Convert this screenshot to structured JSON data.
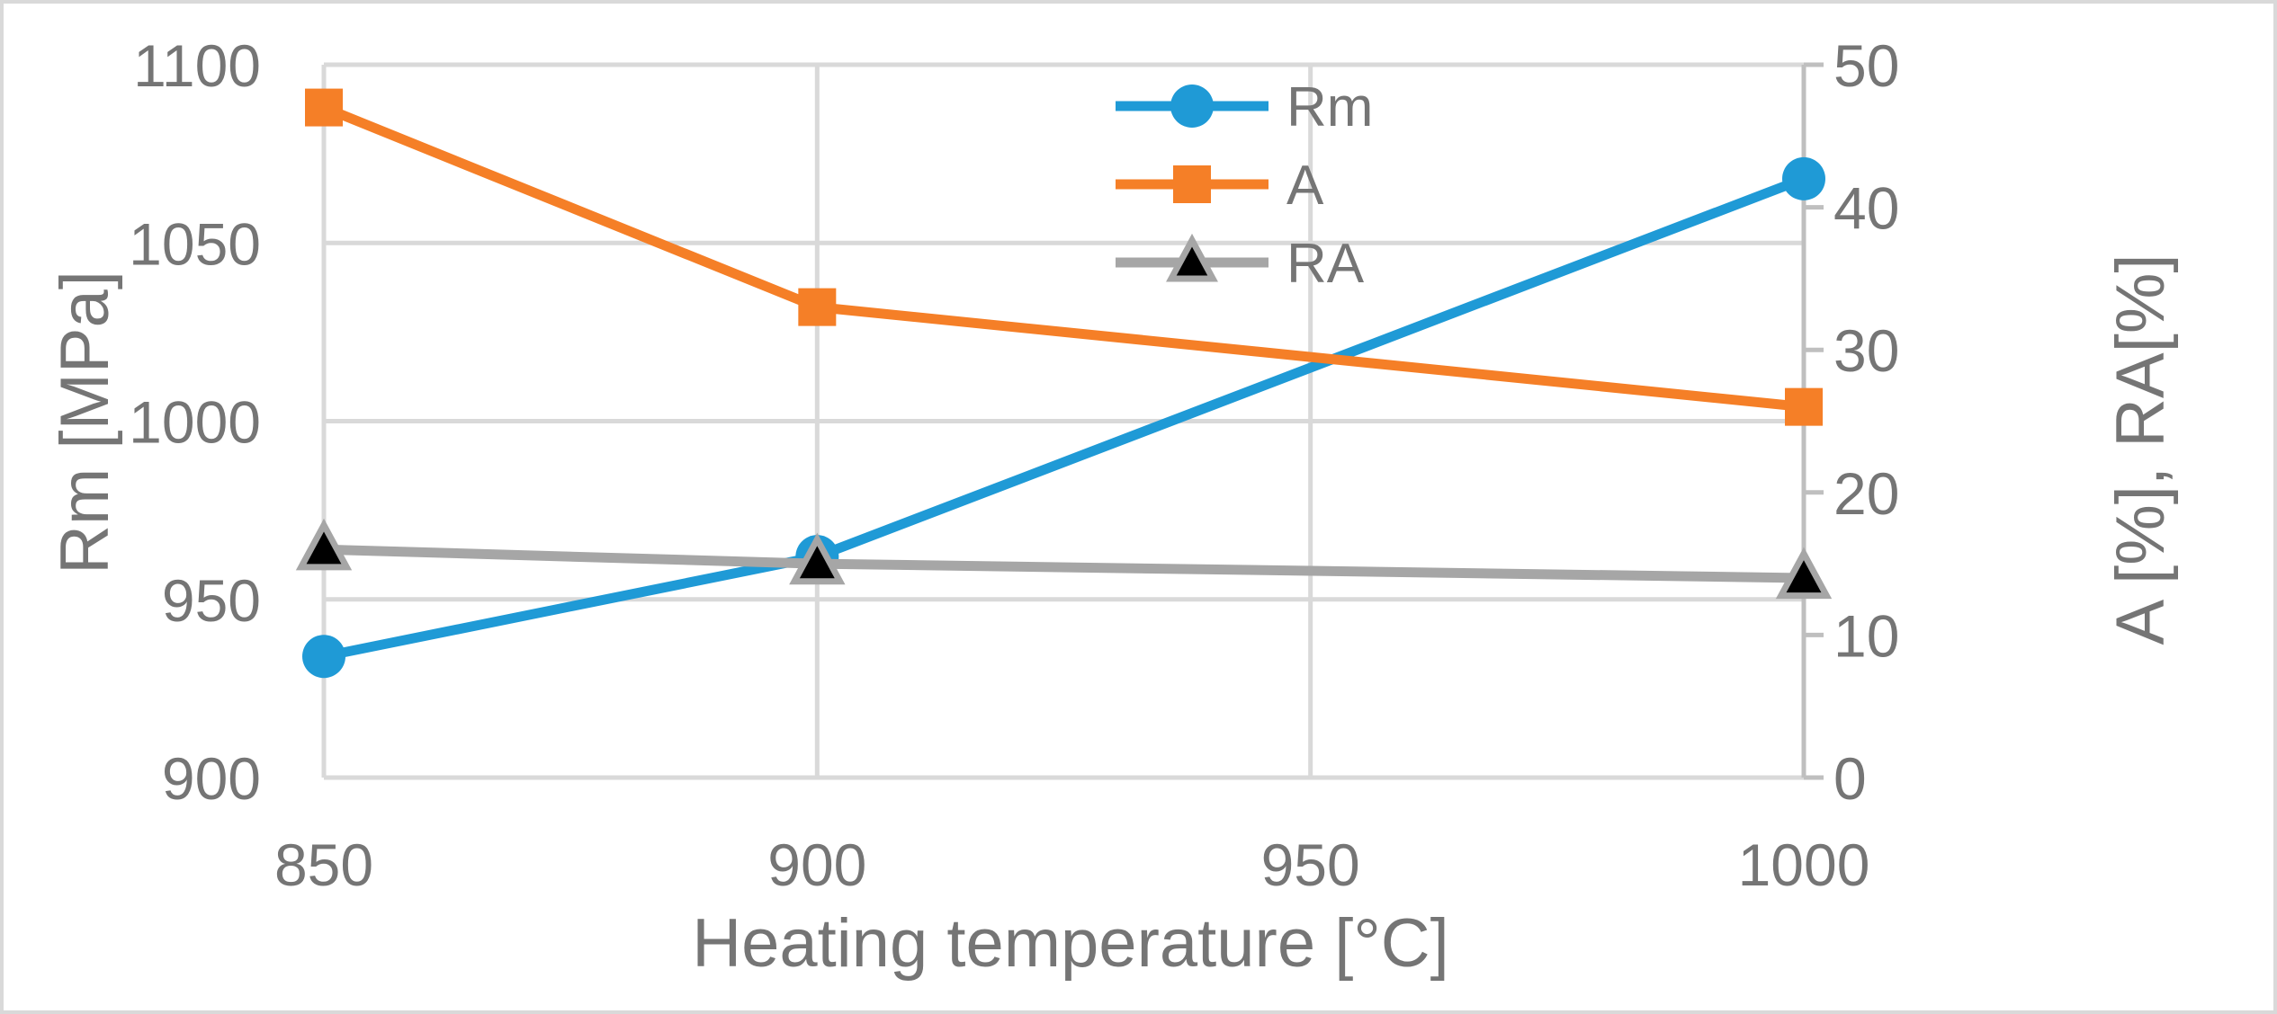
{
  "chart_data": {
    "type": "line",
    "xlabel": "Heating temperature [°C]",
    "ylabel": "Rm [MPa]",
    "y2label": "A [%], RA[%]",
    "x": [
      850,
      900,
      1000
    ],
    "xlim": [
      850,
      1000
    ],
    "xticks": [
      850,
      900,
      950,
      1000
    ],
    "ylim": [
      900,
      1100
    ],
    "yticks": [
      900,
      950,
      1000,
      1050,
      1100
    ],
    "y2lim": [
      0,
      50
    ],
    "y2ticks": [
      0,
      10,
      20,
      30,
      40,
      50
    ],
    "grid": true,
    "legend_position": "top-center",
    "series": [
      {
        "name": "Rm",
        "axis": "left",
        "values": [
          934,
          962,
          1068
        ],
        "color": "#1f9ad6",
        "marker": "circle"
      },
      {
        "name": "A",
        "axis": "right",
        "values": [
          47,
          33,
          26
        ],
        "color": "#f57f27",
        "marker": "square"
      },
      {
        "name": "RA",
        "axis": "right",
        "values": [
          16,
          15,
          14
        ],
        "color": "#a6a6a6",
        "marker": "triangle"
      }
    ],
    "colors": {
      "grid": "#d9d9d9",
      "text": "#757575",
      "frame": "#d9d9d9"
    }
  }
}
